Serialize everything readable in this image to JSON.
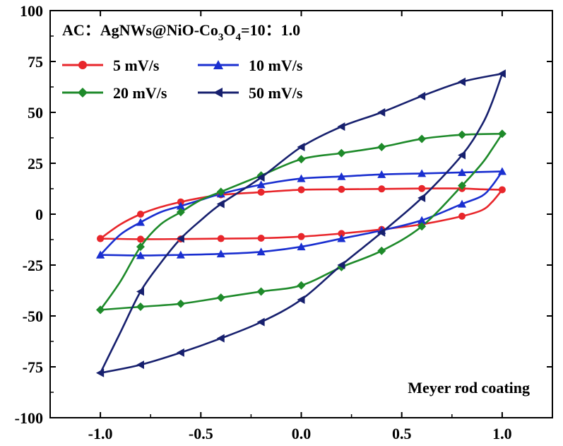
{
  "chart_data": {
    "type": "line",
    "title_parts": {
      "prefix": "AC：AgNWs@NiO-Co",
      "sub1": "3",
      "mid": "O",
      "sub2": "4",
      "suffix": "=10：1.0"
    },
    "annotation": "Meyer rod coating",
    "xlabel": "",
    "ylabel": "",
    "xlim": [
      -1.25,
      1.25
    ],
    "ylim": [
      -100,
      100
    ],
    "x_ticks": [
      -1.0,
      -0.5,
      0.0,
      0.5,
      1.0
    ],
    "x_tick_labels": [
      "-1.0",
      "-0.5",
      "0.0",
      "0.5",
      "1.0"
    ],
    "y_ticks": [
      -100,
      -75,
      -50,
      -25,
      0,
      25,
      50,
      75,
      100
    ],
    "y_tick_labels": [
      "-100",
      "-75",
      "-50",
      "-25",
      "0",
      "25",
      "50",
      "75",
      "100"
    ],
    "grid": false,
    "legend_position": "top-left",
    "series": [
      {
        "name": "5 mV/s",
        "color": "#e8262b",
        "marker": "circle",
        "anodic": [
          [
            -1.0,
            -12
          ],
          [
            -0.9,
            -5
          ],
          [
            -0.8,
            0
          ],
          [
            -0.7,
            3.5
          ],
          [
            -0.6,
            6
          ],
          [
            -0.5,
            8
          ],
          [
            -0.4,
            9.5
          ],
          [
            -0.2,
            10.8
          ],
          [
            0.0,
            12
          ],
          [
            0.2,
            12.2
          ],
          [
            0.4,
            12.4
          ],
          [
            0.6,
            12.6
          ],
          [
            0.8,
            12.6
          ],
          [
            0.9,
            12.2
          ],
          [
            1.0,
            12
          ]
        ],
        "cathodic": [
          [
            1.0,
            12
          ],
          [
            0.95,
            6
          ],
          [
            0.9,
            2
          ],
          [
            0.8,
            -1
          ],
          [
            0.6,
            -5
          ],
          [
            0.4,
            -7.5
          ],
          [
            0.2,
            -9.5
          ],
          [
            0.0,
            -11
          ],
          [
            -0.2,
            -11.8
          ],
          [
            -0.4,
            -12
          ],
          [
            -0.6,
            -12.2
          ],
          [
            -0.8,
            -12.3
          ],
          [
            -1.0,
            -12
          ]
        ]
      },
      {
        "name": "10 mV/s",
        "color": "#1a2fd0",
        "marker": "triangle",
        "anodic": [
          [
            -1.0,
            -20
          ],
          [
            -0.9,
            -10
          ],
          [
            -0.8,
            -4
          ],
          [
            -0.7,
            1
          ],
          [
            -0.6,
            4
          ],
          [
            -0.5,
            7
          ],
          [
            -0.4,
            10
          ],
          [
            -0.2,
            14.5
          ],
          [
            0.0,
            17.5
          ],
          [
            0.2,
            18.5
          ],
          [
            0.4,
            19.5
          ],
          [
            0.6,
            20
          ],
          [
            0.8,
            20.5
          ],
          [
            1.0,
            21
          ]
        ],
        "cathodic": [
          [
            1.0,
            21
          ],
          [
            0.95,
            14
          ],
          [
            0.9,
            9
          ],
          [
            0.8,
            5
          ],
          [
            0.6,
            -3
          ],
          [
            0.4,
            -8
          ],
          [
            0.2,
            -12
          ],
          [
            0.0,
            -16
          ],
          [
            -0.2,
            -18.5
          ],
          [
            -0.4,
            -19.5
          ],
          [
            -0.6,
            -20
          ],
          [
            -0.8,
            -20.3
          ],
          [
            -1.0,
            -20
          ]
        ]
      },
      {
        "name": "20 mV/s",
        "color": "#1e8a2a",
        "marker": "diamond",
        "anodic": [
          [
            -1.0,
            -47
          ],
          [
            -0.9,
            -33
          ],
          [
            -0.8,
            -16
          ],
          [
            -0.7,
            -5
          ],
          [
            -0.6,
            1
          ],
          [
            -0.5,
            7
          ],
          [
            -0.4,
            11
          ],
          [
            -0.2,
            19
          ],
          [
            0.0,
            27
          ],
          [
            0.2,
            30
          ],
          [
            0.4,
            33
          ],
          [
            0.6,
            37
          ],
          [
            0.8,
            39
          ],
          [
            1.0,
            39.5
          ]
        ],
        "cathodic": [
          [
            1.0,
            39.5
          ],
          [
            0.95,
            32
          ],
          [
            0.9,
            25
          ],
          [
            0.8,
            14
          ],
          [
            0.6,
            -6
          ],
          [
            0.4,
            -18
          ],
          [
            0.2,
            -26
          ],
          [
            0.0,
            -35
          ],
          [
            -0.2,
            -38
          ],
          [
            -0.4,
            -41
          ],
          [
            -0.6,
            -44
          ],
          [
            -0.8,
            -45.5
          ],
          [
            -1.0,
            -47
          ]
        ]
      },
      {
        "name": "50 mV/s",
        "color": "#17206e",
        "marker": "triangle-left",
        "anodic": [
          [
            -1.0,
            -78
          ],
          [
            -0.9,
            -58
          ],
          [
            -0.8,
            -38
          ],
          [
            -0.7,
            -24
          ],
          [
            -0.6,
            -12
          ],
          [
            -0.5,
            -3
          ],
          [
            -0.4,
            5
          ],
          [
            -0.2,
            18
          ],
          [
            0.0,
            33
          ],
          [
            0.2,
            43
          ],
          [
            0.4,
            50
          ],
          [
            0.6,
            58
          ],
          [
            0.8,
            65
          ],
          [
            1.0,
            69
          ]
        ],
        "cathodic": [
          [
            1.0,
            69
          ],
          [
            0.95,
            55
          ],
          [
            0.9,
            44
          ],
          [
            0.8,
            29
          ],
          [
            0.6,
            8
          ],
          [
            0.4,
            -9
          ],
          [
            0.2,
            -25
          ],
          [
            0.0,
            -42
          ],
          [
            -0.2,
            -53
          ],
          [
            -0.4,
            -61
          ],
          [
            -0.6,
            -68
          ],
          [
            -0.8,
            -74
          ],
          [
            -1.0,
            -78
          ]
        ]
      }
    ]
  }
}
